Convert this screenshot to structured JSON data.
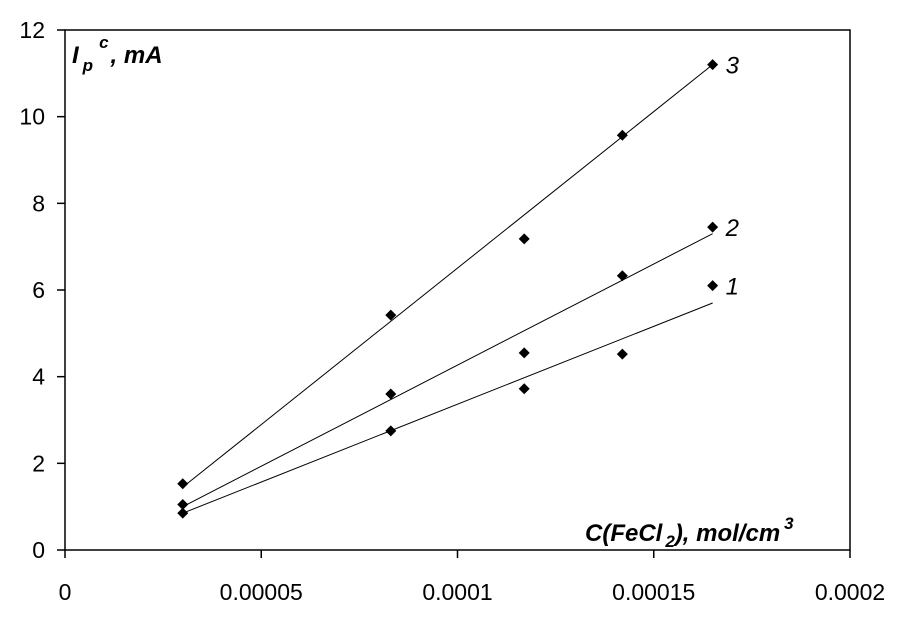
{
  "chart_data": {
    "type": "scatter",
    "x_tick_labels": [
      "0",
      "0.00005",
      "0.0001",
      "0.00015",
      "0.0002"
    ],
    "y_tick_labels": [
      "0",
      "2",
      "4",
      "6",
      "8",
      "10",
      "12"
    ],
    "x_ticks": [
      0,
      5e-05,
      0.0001,
      0.00015,
      0.0002
    ],
    "y_ticks": [
      0,
      2,
      4,
      6,
      8,
      10,
      12
    ],
    "xlim": [
      0,
      0.0002
    ],
    "ylim": [
      0,
      12
    ],
    "grid": false,
    "legend": "none",
    "ylabel": {
      "main": "I",
      "sub": "p",
      "sup": "c",
      "rest": ", mA"
    },
    "xlabel": {
      "pre": "C(FeCl",
      "sub": "2",
      "mid": "), mol/cm",
      "sup": "3"
    },
    "x": [
      3e-05,
      8.3e-05,
      0.000117,
      0.000142,
      0.000165
    ],
    "series": [
      {
        "name": "1",
        "values": [
          0.85,
          2.75,
          3.72,
          4.52,
          6.1
        ],
        "fit": {
          "x": [
            3e-05,
            0.000165
          ],
          "y": [
            0.85,
            5.7
          ]
        }
      },
      {
        "name": "2",
        "values": [
          1.05,
          3.6,
          4.55,
          6.33,
          7.45
        ],
        "fit": {
          "x": [
            3e-05,
            0.000165
          ],
          "y": [
            1.0,
            7.3
          ]
        }
      },
      {
        "name": "3",
        "values": [
          1.53,
          5.42,
          7.18,
          9.57,
          11.2
        ],
        "fit": {
          "x": [
            3e-05,
            0.000165
          ],
          "y": [
            1.45,
            11.2
          ]
        }
      }
    ],
    "colors": {
      "line": "#000000",
      "marker": "#000000",
      "background": "#ffffff"
    }
  }
}
